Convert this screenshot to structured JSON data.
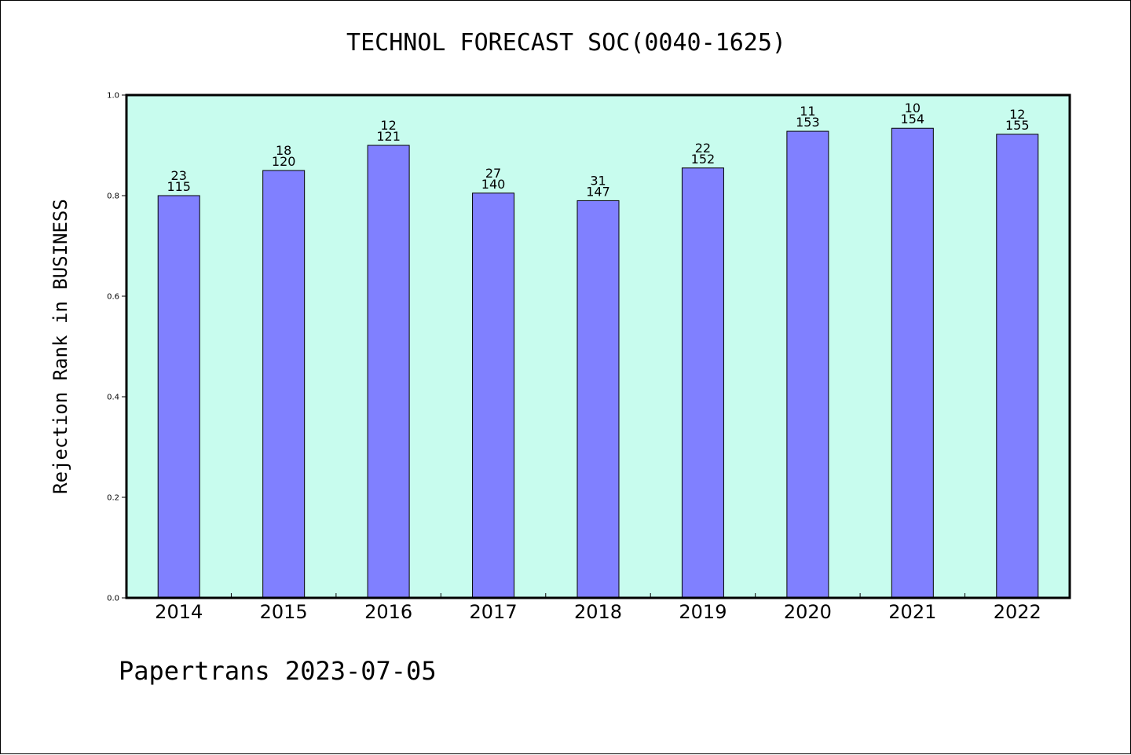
{
  "chart_data": {
    "type": "bar",
    "title": "TECHNOL FORECAST SOC(0040-1625)",
    "xlabel": "",
    "ylabel": "Rejection Rank in BUSINESS",
    "ylim": [
      0.0,
      1.0
    ],
    "yticks": [
      "0.0",
      "0.2",
      "0.4",
      "0.6",
      "0.8",
      "1.0"
    ],
    "grid": false,
    "categories": [
      "2014",
      "2015",
      "2016",
      "2017",
      "2018",
      "2019",
      "2020",
      "2021",
      "2022"
    ],
    "values": [
      0.8,
      0.85,
      0.9,
      0.805,
      0.79,
      0.855,
      0.928,
      0.934,
      0.922
    ],
    "label_top": [
      "23",
      "18",
      "12",
      "27",
      "31",
      "22",
      "11",
      "10",
      "12"
    ],
    "label_bottom": [
      "115",
      "120",
      "121",
      "140",
      "147",
      "152",
      "153",
      "154",
      "155"
    ],
    "colors": {
      "plot_background": "#c8fcee",
      "bar": "#8080ff",
      "axis": "#000000"
    }
  },
  "footer": {
    "text": "Papertrans 2023-07-05"
  }
}
